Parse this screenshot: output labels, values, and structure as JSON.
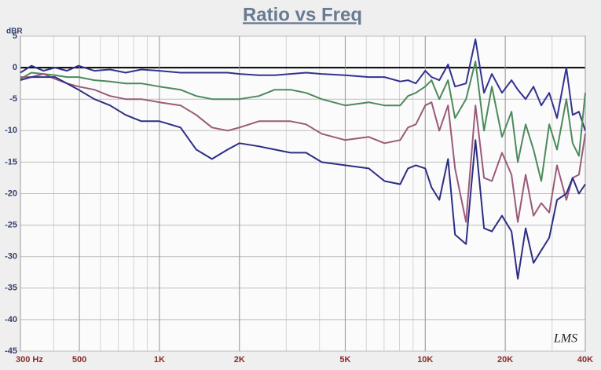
{
  "chart_data": {
    "type": "line",
    "title": "Ratio vs Freq",
    "y_label": "dBR",
    "watermark": "LMS",
    "log_x": true,
    "grid": true,
    "xlim": [
      300,
      40000
    ],
    "ylim": [
      -45,
      5
    ],
    "xticks": [
      {
        "value": 300,
        "label": "300 Hz"
      },
      500,
      {
        "value": 1000,
        "label": "1K"
      },
      {
        "value": 2000,
        "label": "2K"
      },
      {
        "value": 5000,
        "label": "5K"
      },
      {
        "value": 10000,
        "label": "10K"
      },
      {
        "value": 20000,
        "label": "20K"
      },
      {
        "value": 40000,
        "label": "40K"
      }
    ],
    "yticks": [
      5,
      0,
      -5,
      -10,
      -15,
      -20,
      -25,
      -30,
      -35,
      -40,
      -45
    ],
    "x": [
      300,
      330,
      366,
      405,
      449,
      496,
      569,
      652,
      746,
      855,
      1000,
      1201,
      1376,
      1576,
      1806,
      2000,
      2370,
      2715,
      3110,
      3562,
      4080,
      5000,
      6133,
      7025,
      8047,
      8610,
      9218,
      10000,
      10560,
      11300,
      12180,
      12940,
      14240,
      15450,
      16640,
      17810,
      19450,
      21110,
      22290,
      23860,
      25540,
      27330,
      29260,
      31310,
      33960,
      35860,
      37860,
      40000
    ],
    "series": [
      {
        "color": "#33338f",
        "values": [
          -0.8,
          0.3,
          -0.5,
          0,
          -0.5,
          0.3,
          -0.5,
          -0.3,
          -0.8,
          -0.3,
          -0.5,
          -0.8,
          -0.8,
          -0.8,
          -0.8,
          -1.0,
          -1.2,
          -1.2,
          -1.0,
          -0.8,
          -1.0,
          -1.2,
          -1.5,
          -1.5,
          -2.2,
          -2.0,
          -2.5,
          -0.5,
          -1.5,
          -2.0,
          0.5,
          -3.0,
          -2.5,
          4.5,
          -4.0,
          -1.0,
          -4.0,
          -2.0,
          -3.5,
          -5.0,
          -3.0,
          -6.0,
          -4.0,
          -8.0,
          0,
          -7.5,
          -7.0,
          -10
        ]
      },
      {
        "color": "#4c8a5c",
        "values": [
          -1.8,
          -0.8,
          -1.0,
          -1.2,
          -1.5,
          -1.5,
          -2.0,
          -2.2,
          -2.5,
          -2.5,
          -3.0,
          -3.5,
          -4.5,
          -5.0,
          -5.0,
          -5.0,
          -4.5,
          -3.5,
          -3.5,
          -4.0,
          -5.0,
          -6.0,
          -5.5,
          -6.0,
          -6.0,
          -4.5,
          -4.0,
          -3.0,
          -2.0,
          -5.0,
          -2.0,
          -8.0,
          -5.0,
          1.0,
          -10.0,
          -3.0,
          -11.0,
          -7.0,
          -15.0,
          -9.0,
          -13.0,
          -18.0,
          -9.0,
          -13.0,
          -5.0,
          -12.0,
          -14.0,
          -4.0
        ]
      },
      {
        "color": "#9a5a78",
        "values": [
          -1.5,
          -1.5,
          -1.0,
          -1.8,
          -2.5,
          -3.0,
          -3.5,
          -4.5,
          -5.0,
          -5.0,
          -5.5,
          -6.0,
          -7.5,
          -9.5,
          -10.0,
          -9.5,
          -8.5,
          -8.5,
          -8.5,
          -9.0,
          -10.5,
          -11.5,
          -11.0,
          -12.0,
          -11.5,
          -9.5,
          -9.0,
          -6.0,
          -5.5,
          -10.0,
          -6.0,
          -16.0,
          -24.5,
          -6.0,
          -17.5,
          -18.0,
          -13.5,
          -17.0,
          -24.5,
          -17.0,
          -23.5,
          -21.5,
          -23.0,
          -15.5,
          -21.0,
          -17.5,
          -17.0,
          -10.5
        ]
      },
      {
        "color": "#2d2d85",
        "values": [
          -2.0,
          -1.5,
          -1.5,
          -1.5,
          -2.5,
          -3.5,
          -5.0,
          -6.0,
          -7.5,
          -8.5,
          -8.5,
          -9.5,
          -13.0,
          -14.5,
          -13.0,
          -12.0,
          -12.5,
          -13.0,
          -13.5,
          -13.5,
          -15.0,
          -15.5,
          -16.0,
          -18.0,
          -18.5,
          -16.0,
          -15.5,
          -16.0,
          -19.0,
          -21.0,
          -14.5,
          -26.5,
          -28.0,
          -11.5,
          -25.5,
          -26.0,
          -23.5,
          -26.0,
          -33.5,
          -25.5,
          -31.0,
          -29.0,
          -27.0,
          -21.0,
          -20.0,
          -17.5,
          -20.0,
          -18.5
        ]
      }
    ]
  }
}
